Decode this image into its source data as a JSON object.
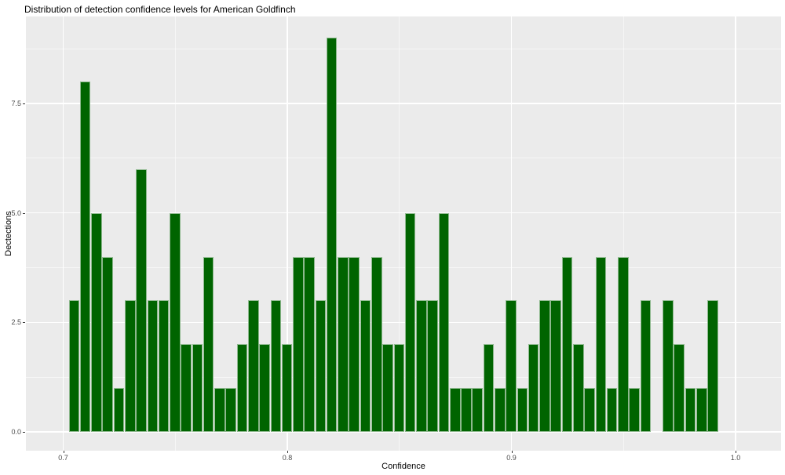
{
  "title": "Distribution of detection confidence levels for American Goldfinch",
  "chart_data": {
    "type": "bar",
    "subtype": "histogram",
    "title": "Distribution of detection confidence levels for American Goldfinch",
    "xlabel": "Confidence",
    "ylabel": "Dectections",
    "legend": "none",
    "grid": "major+minor",
    "xlim": [
      0.683,
      1.02
    ],
    "ylim": [
      -0.45,
      9.45
    ],
    "binwidth": 0.005,
    "x_ticks": [
      {
        "v": 0.7,
        "label": "0.7"
      },
      {
        "v": 0.8,
        "label": "0.8"
      },
      {
        "v": 0.9,
        "label": "0.9"
      },
      {
        "v": 1.0,
        "label": "1.0"
      }
    ],
    "y_ticks": [
      {
        "v": 0.0,
        "label": "0.0"
      },
      {
        "v": 2.5,
        "label": "2.5"
      },
      {
        "v": 5.0,
        "label": "5.0"
      },
      {
        "v": 7.5,
        "label": "7.5"
      }
    ],
    "x_minor": [
      0.75,
      0.85,
      0.95
    ],
    "y_minor": [
      1.25,
      3.75,
      6.25,
      8.75
    ],
    "colors": {
      "bar_fill": "#006400",
      "bar_edge": "#bcd4bc",
      "panel_bg": "#ebebeb",
      "gridline": "#ffffff",
      "axis_text": "#4d4d4d",
      "title_text": "#000000",
      "figure_bg": "#ffffff"
    },
    "bins": [
      {
        "x": 0.705,
        "count": 3
      },
      {
        "x": 0.71,
        "count": 8
      },
      {
        "x": 0.715,
        "count": 5
      },
      {
        "x": 0.72,
        "count": 4
      },
      {
        "x": 0.725,
        "count": 1
      },
      {
        "x": 0.73,
        "count": 3
      },
      {
        "x": 0.735,
        "count": 6
      },
      {
        "x": 0.74,
        "count": 3
      },
      {
        "x": 0.745,
        "count": 3
      },
      {
        "x": 0.75,
        "count": 5
      },
      {
        "x": 0.755,
        "count": 2
      },
      {
        "x": 0.76,
        "count": 2
      },
      {
        "x": 0.765,
        "count": 4
      },
      {
        "x": 0.77,
        "count": 1
      },
      {
        "x": 0.775,
        "count": 1
      },
      {
        "x": 0.78,
        "count": 2
      },
      {
        "x": 0.785,
        "count": 3
      },
      {
        "x": 0.79,
        "count": 2
      },
      {
        "x": 0.795,
        "count": 3
      },
      {
        "x": 0.8,
        "count": 2
      },
      {
        "x": 0.805,
        "count": 4
      },
      {
        "x": 0.81,
        "count": 4
      },
      {
        "x": 0.815,
        "count": 3
      },
      {
        "x": 0.82,
        "count": 9
      },
      {
        "x": 0.825,
        "count": 4
      },
      {
        "x": 0.83,
        "count": 4
      },
      {
        "x": 0.835,
        "count": 3
      },
      {
        "x": 0.84,
        "count": 4
      },
      {
        "x": 0.845,
        "count": 2
      },
      {
        "x": 0.85,
        "count": 2
      },
      {
        "x": 0.855,
        "count": 5
      },
      {
        "x": 0.86,
        "count": 3
      },
      {
        "x": 0.865,
        "count": 3
      },
      {
        "x": 0.87,
        "count": 5
      },
      {
        "x": 0.875,
        "count": 1
      },
      {
        "x": 0.88,
        "count": 1
      },
      {
        "x": 0.885,
        "count": 1
      },
      {
        "x": 0.89,
        "count": 2
      },
      {
        "x": 0.895,
        "count": 1
      },
      {
        "x": 0.9,
        "count": 3
      },
      {
        "x": 0.905,
        "count": 1
      },
      {
        "x": 0.91,
        "count": 2
      },
      {
        "x": 0.915,
        "count": 3
      },
      {
        "x": 0.92,
        "count": 3
      },
      {
        "x": 0.925,
        "count": 4
      },
      {
        "x": 0.93,
        "count": 2
      },
      {
        "x": 0.935,
        "count": 1
      },
      {
        "x": 0.94,
        "count": 4
      },
      {
        "x": 0.945,
        "count": 1
      },
      {
        "x": 0.95,
        "count": 4
      },
      {
        "x": 0.955,
        "count": 1
      },
      {
        "x": 0.96,
        "count": 3
      },
      {
        "x": 0.965,
        "count": 0
      },
      {
        "x": 0.97,
        "count": 3
      },
      {
        "x": 0.975,
        "count": 2
      },
      {
        "x": 0.98,
        "count": 1
      },
      {
        "x": 0.985,
        "count": 1
      },
      {
        "x": 0.99,
        "count": 3
      }
    ]
  }
}
